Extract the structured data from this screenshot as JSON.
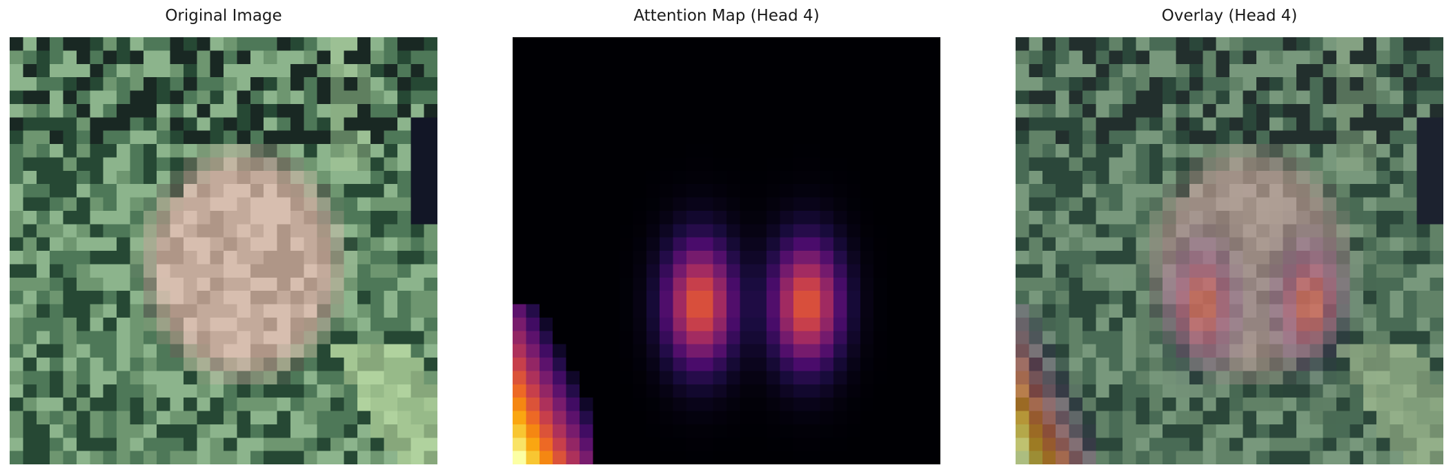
{
  "figure": {
    "panels": [
      {
        "title": "Original Image"
      },
      {
        "title": "Attention Map (Head 4)"
      },
      {
        "title": "Overlay (Head 4)"
      }
    ],
    "colormap": [
      "#000004",
      "#1b0c41",
      "#4a0c6b",
      "#781c6d",
      "#a52c60",
      "#cf4446",
      "#ed6925",
      "#fb9b06",
      "#f7d13d",
      "#fcffa4"
    ],
    "attention_peaks": [
      {
        "label": "left-blob",
        "value": 0.62
      },
      {
        "label": "right-blob",
        "value": 0.62
      },
      {
        "label": "corner-blob",
        "value": 1.0
      }
    ]
  }
}
